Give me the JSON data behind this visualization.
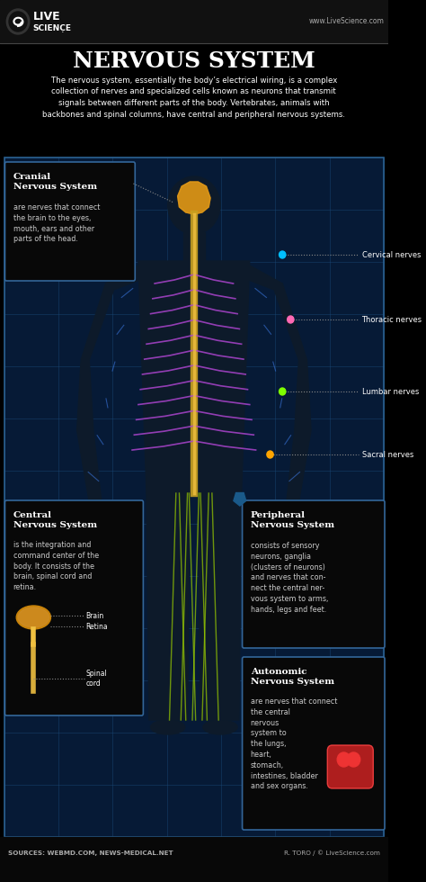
{
  "bg_color": "#000000",
  "header_bg": "#111111",
  "blue_bg": "#061a36",
  "grid_color": "#1a4a7a",
  "title": "Nervous System",
  "subtitle": "The nervous system, essentially the body’s electrical wiring, is a complex\ncollection of nerves and specialized cells known as neurons that transmit\nsignals between different parts of the body. Vertebrates, animals with\nbackbones and spinal columns, have central and peripheral nervous systems.",
  "logo_text": "Live Science.",
  "website": "www.LiveScience.com",
  "sources": "SOURCES: WEBMD.COM, NEWS-MEDICAL.NET",
  "credit": "R. TORO / © LiveScience.com",
  "cranial_title": "Cranial\nNervous System",
  "cranial_body": "are nerves that connect\nthe brain to the eyes,\nmouth, ears and other\nparts of the head.",
  "central_title": "Central\nNervous System",
  "central_body": "is the integration and\ncommand center of the\nbody. It consists of the\nbrain, spinal cord and\nretina.",
  "peripheral_title": "Peripheral\nNervous System",
  "peripheral_body": "consists of sensory\nneurons, ganglia\n(clusters of neurons)\nand nerves that con-\nnect the central ner-\nvous system to arms,\nhands, legs and feet.",
  "autonomic_title": "Autonomic\nNervous System",
  "autonomic_body": "are nerves that connect\nthe central\nnervous\nsystem to\nthe lungs,\nheart,\nstomach,\nintestines, bladder\nand sex organs.",
  "cervical_label": "Cervical nerves",
  "thoracic_label": "Thoracic nerves",
  "lumbar_label": "Lumbar nerves",
  "sacral_label": "Sacral nerves",
  "brain_label": "Brain",
  "retina_label": "Retina",
  "spinal_label": "Spinal\ncord",
  "cervical_dot": "#00bfff",
  "thoracic_dot": "#ff69b4",
  "lumbar_dot": "#7fff00",
  "sacral_dot": "#ffa500",
  "label_color": "#ffffff",
  "dot_line_color": "#aaaaaa",
  "box_bg": "#0a0a0a",
  "box_border": "#2a6090",
  "title_color": "#ffffff",
  "body_text_color": "#cccccc"
}
